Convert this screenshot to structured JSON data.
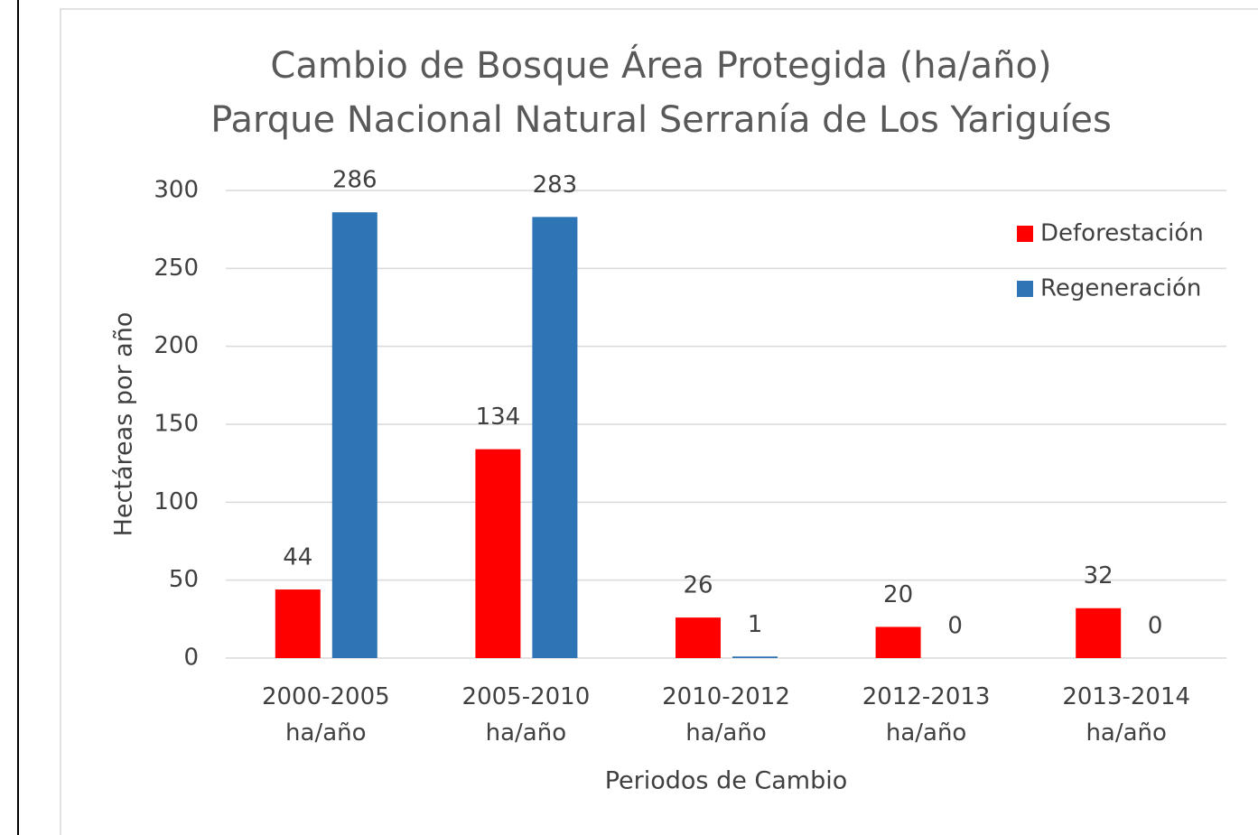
{
  "chart_data": {
    "type": "bar",
    "title": "Cambio de Bosque Área Protegida (ha/año)",
    "subtitle": "Parque Nacional Natural Serranía de Los Yariguíes",
    "categories": [
      "2000-2005 ha/año",
      "2005-2010 ha/año",
      "2010-2012 ha/año",
      "2012-2013 ha/año",
      "2013-2014 ha/año"
    ],
    "series": [
      {
        "name": "Deforestación",
        "color": "#ff0000",
        "values": [
          44,
          134,
          26,
          20,
          32
        ]
      },
      {
        "name": "Regeneración",
        "color": "#2e75b6",
        "values": [
          286,
          283,
          1,
          0,
          0
        ]
      }
    ],
    "ylim": [
      0,
      300
    ],
    "yticks": [
      0,
      50,
      100,
      150,
      200,
      250,
      300
    ],
    "ylabel": "Hectáreas por año",
    "xlabel": "Periodos de Cambio",
    "grid": true,
    "legend": "upper right"
  }
}
